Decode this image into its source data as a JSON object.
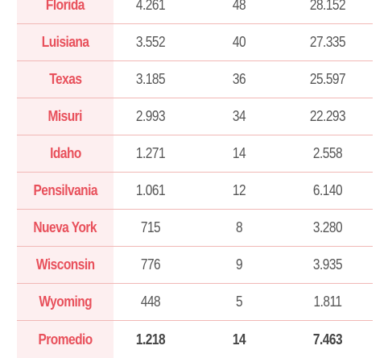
{
  "rows": [
    {
      "state": "Florida",
      "v1": "4.261",
      "v2": "48",
      "v3": "28.152"
    },
    {
      "state": "Luisiana",
      "v1": "3.552",
      "v2": "40",
      "v3": "27.335"
    },
    {
      "state": "Texas",
      "v1": "3.185",
      "v2": "36",
      "v3": "25.597"
    },
    {
      "state": "Misuri",
      "v1": "2.993",
      "v2": "34",
      "v3": "22.293"
    },
    {
      "state": "Idaho",
      "v1": "1.271",
      "v2": "14",
      "v3": "2.558"
    },
    {
      "state": "Pensilvania",
      "v1": "1.061",
      "v2": "12",
      "v3": "6.140"
    },
    {
      "state": "Nueva York",
      "v1": "715",
      "v2": "8",
      "v3": "3.280"
    },
    {
      "state": "Wisconsin",
      "v1": "776",
      "v2": "9",
      "v3": "3.935"
    },
    {
      "state": "Wyoming",
      "v1": "448",
      "v2": "5",
      "v3": "1.811"
    }
  ],
  "summary": {
    "state": "Promedio",
    "v1": "1.218",
    "v2": "14",
    "v3": "7.463"
  },
  "colors": {
    "accent": "#e8505b",
    "state_bg": "#fdeff0",
    "divider": "#f1b8b6",
    "text": "#555555"
  }
}
